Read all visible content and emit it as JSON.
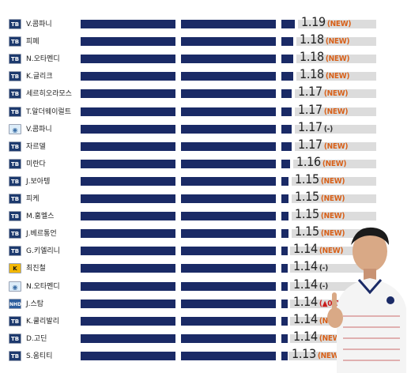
{
  "chart_data": {
    "type": "bar",
    "orientation": "horizontal",
    "rows": [
      {
        "badge": "TB",
        "name": "V.콤파니",
        "value": "1.19",
        "change": "(NEW)"
      },
      {
        "badge": "TB",
        "name": "피페",
        "value": "1.18",
        "change": "(NEW)"
      },
      {
        "badge": "TB",
        "name": "N.오타멘디",
        "value": "1.18",
        "change": "(NEW)"
      },
      {
        "badge": "TB",
        "name": "K.글리크",
        "value": "1.18",
        "change": "(NEW)"
      },
      {
        "badge": "TB",
        "name": "세르히오라모스",
        "value": "1.17",
        "change": "(NEW)"
      },
      {
        "badge": "TB",
        "name": "T.알더웨이럴트",
        "value": "1.17",
        "change": "(NEW)"
      },
      {
        "badge": "MC",
        "name": "V.콤파니",
        "value": "1.17",
        "change": "(-)"
      },
      {
        "badge": "TB",
        "name": "자르델",
        "value": "1.17",
        "change": "(NEW)"
      },
      {
        "badge": "TB",
        "name": "미란다",
        "value": "1.16",
        "change": "(NEW)"
      },
      {
        "badge": "TB",
        "name": "J.보아텡",
        "value": "1.15",
        "change": "(NEW)"
      },
      {
        "badge": "TB",
        "name": "피케",
        "value": "1.15",
        "change": "(NEW)"
      },
      {
        "badge": "TB",
        "name": "M.훔멜스",
        "value": "1.15",
        "change": "(NEW)"
      },
      {
        "badge": "TB",
        "name": "J.베르통언",
        "value": "1.15",
        "change": "(NEW)"
      },
      {
        "badge": "TB",
        "name": "G.키엘리니",
        "value": "1.14",
        "change": "(NEW)"
      },
      {
        "badge": "K",
        "name": "최진철",
        "value": "1.14",
        "change": "(-)"
      },
      {
        "badge": "MC",
        "name": "N.오타멘디",
        "value": "1.14",
        "change": "(-)"
      },
      {
        "badge": "NHD",
        "name": "J.스탐",
        "value": "1.14",
        "change": "(▲0.01)"
      },
      {
        "badge": "TB",
        "name": "K.쿨리발리",
        "value": "1.14",
        "change": "(NEW)"
      },
      {
        "badge": "TB",
        "name": "D.고딘",
        "value": "1.14",
        "change": "(NEW)"
      },
      {
        "badge": "TB",
        "name": "S.움티티",
        "value": "1.13",
        "change": "(NEW)"
      }
    ],
    "colors": {
      "bar": "#1a2a66",
      "track": "#dcdcdc",
      "new": "#d86018"
    }
  }
}
